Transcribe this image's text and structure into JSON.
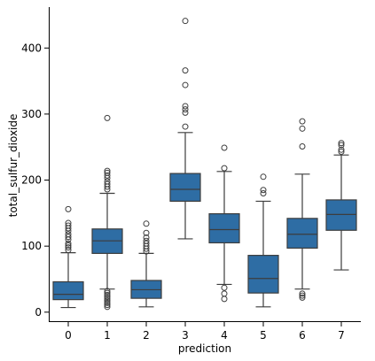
{
  "chart_data": {
    "type": "box",
    "xlabel": "prediction",
    "ylabel": "total_sulfur_dioxide",
    "categories": [
      "0",
      "1",
      "2",
      "3",
      "4",
      "5",
      "6",
      "7"
    ],
    "yticks": [
      0,
      100,
      200,
      300,
      400
    ],
    "ylim": [
      -15,
      462
    ],
    "grid": false,
    "box_color": "#2e6da4",
    "line_color": "#3d3d3d",
    "boxes": [
      {
        "category": "0",
        "whisker_low": 7,
        "q1": 19,
        "median": 27,
        "q3": 46,
        "whisker_high": 90,
        "outliers": [
          94,
          98,
          101,
          104,
          110,
          114,
          118,
          123,
          127,
          131,
          135,
          156
        ]
      },
      {
        "category": "1",
        "whisker_low": 35,
        "q1": 89,
        "median": 108,
        "q3": 126,
        "whisker_high": 180,
        "outliers": [
          8,
          11,
          14,
          17,
          20,
          23,
          26,
          29,
          32,
          186,
          190,
          194,
          198,
          203,
          207,
          211,
          214,
          294
        ]
      },
      {
        "category": "2",
        "whisker_low": 8,
        "q1": 21,
        "median": 34,
        "q3": 48,
        "whisker_high": 89,
        "outliers": [
          92,
          96,
          100,
          104,
          108,
          113,
          120,
          134
        ]
      },
      {
        "category": "3",
        "whisker_low": 111,
        "q1": 168,
        "median": 186,
        "q3": 210,
        "whisker_high": 272,
        "outliers": [
          281,
          302,
          307,
          312,
          344,
          366,
          441
        ]
      },
      {
        "category": "4",
        "whisker_low": 42,
        "q1": 105,
        "median": 125,
        "q3": 149,
        "whisker_high": 213,
        "outliers": [
          20,
          28,
          37,
          218,
          249
        ]
      },
      {
        "category": "5",
        "whisker_low": 8,
        "q1": 29,
        "median": 51,
        "q3": 86,
        "whisker_high": 168,
        "outliers": [
          180,
          185,
          205
        ]
      },
      {
        "category": "6",
        "whisker_low": 35,
        "q1": 97,
        "median": 118,
        "q3": 142,
        "whisker_high": 209,
        "outliers": [
          22,
          25,
          28,
          251,
          278,
          289
        ]
      },
      {
        "category": "7",
        "whisker_low": 64,
        "q1": 124,
        "median": 148,
        "q3": 170,
        "whisker_high": 238,
        "outliers": [
          243,
          246,
          253,
          256
        ]
      }
    ]
  }
}
